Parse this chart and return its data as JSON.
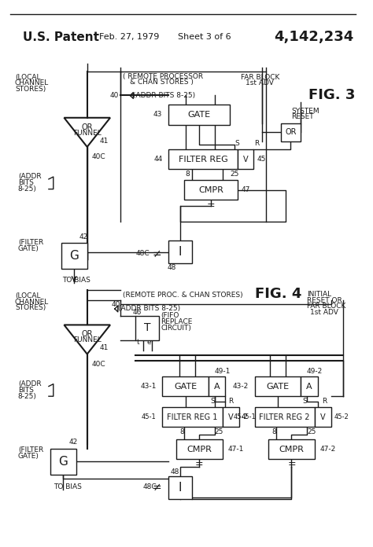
{
  "title_left": "U.S. Patent",
  "title_date": "Feb. 27, 1979",
  "title_sheet": "Sheet 3 of 6",
  "title_patent": "4,142,234",
  "fig3_label": "FIG. 3",
  "fig4_label": "FIG. 4",
  "bg_color": "#ffffff",
  "line_color": "#1a1a1a",
  "text_color": "#1a1a1a"
}
